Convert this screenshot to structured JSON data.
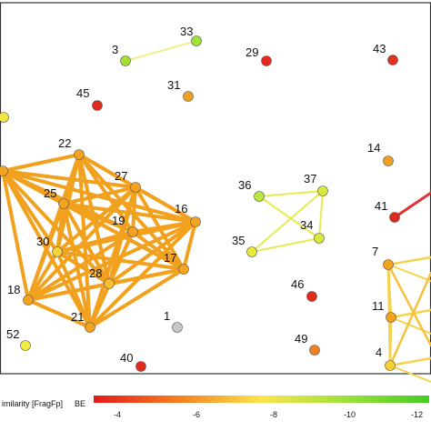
{
  "legend": {
    "title": "imilarity [FragFp]",
    "be_label": "BE",
    "ticks": [
      "-4",
      "-6",
      "-8",
      "-10",
      "-12"
    ],
    "gradient": [
      "#e41a1c",
      "#f47d20",
      "#fbe54b",
      "#9fe03a",
      "#44cc22"
    ]
  },
  "nodes": [
    {
      "id": "33",
      "color": "#9ee23a"
    },
    {
      "id": "3",
      "color": "#a6e033"
    },
    {
      "id": "29",
      "color": "#e8291c"
    },
    {
      "id": "43",
      "color": "#e4301a"
    },
    {
      "id": "45",
      "color": "#e02a1a"
    },
    {
      "id": "31",
      "color": "#f0a020"
    },
    {
      "id": "22",
      "color": "#f5a21e"
    },
    {
      "id": "27",
      "color": "#f5a21e"
    },
    {
      "id": "25",
      "color": "#f5a21e"
    },
    {
      "id": "19",
      "color": "#f5a21e"
    },
    {
      "id": "16",
      "color": "#f5a21e"
    },
    {
      "id": "30",
      "color": "#f8d23a"
    },
    {
      "id": "17",
      "color": "#f5a21e"
    },
    {
      "id": "28",
      "color": "#f8c030"
    },
    {
      "id": "18",
      "color": "#f5a21e"
    },
    {
      "id": "21",
      "color": "#f5a21e"
    },
    {
      "id": "1",
      "color": "#c8c8c8"
    },
    {
      "id": "52",
      "color": "#f2ec40"
    },
    {
      "id": "40",
      "color": "#e02a1a"
    },
    {
      "id": "36",
      "color": "#b8e83a"
    },
    {
      "id": "37",
      "color": "#d8ea3a"
    },
    {
      "id": "34",
      "color": "#d8ea3a"
    },
    {
      "id": "35",
      "color": "#eaea3a"
    },
    {
      "id": "46",
      "color": "#e02a1a"
    },
    {
      "id": "49",
      "color": "#f08020"
    },
    {
      "id": "14",
      "color": "#f0a020"
    },
    {
      "id": "41",
      "color": "#e02a1a"
    },
    {
      "id": "7",
      "color": "#f5a21e"
    },
    {
      "id": "11",
      "color": "#f5a21e"
    },
    {
      "id": "4",
      "color": "#f8d030"
    }
  ],
  "edges": [
    {
      "a": "3",
      "b": "33",
      "color": "#f0ee8a"
    },
    {
      "a": "36",
      "b": "37",
      "color": "#e8ea50"
    },
    {
      "a": "36",
      "b": "34",
      "color": "#e8ea50"
    },
    {
      "a": "37",
      "b": "34",
      "color": "#e8ea50"
    },
    {
      "a": "37",
      "b": "35",
      "color": "#e8ea50"
    },
    {
      "a": "35",
      "b": "34",
      "color": "#e8ea50"
    },
    {
      "a": "41",
      "b": "41out",
      "color": "#e03030"
    }
  ]
}
